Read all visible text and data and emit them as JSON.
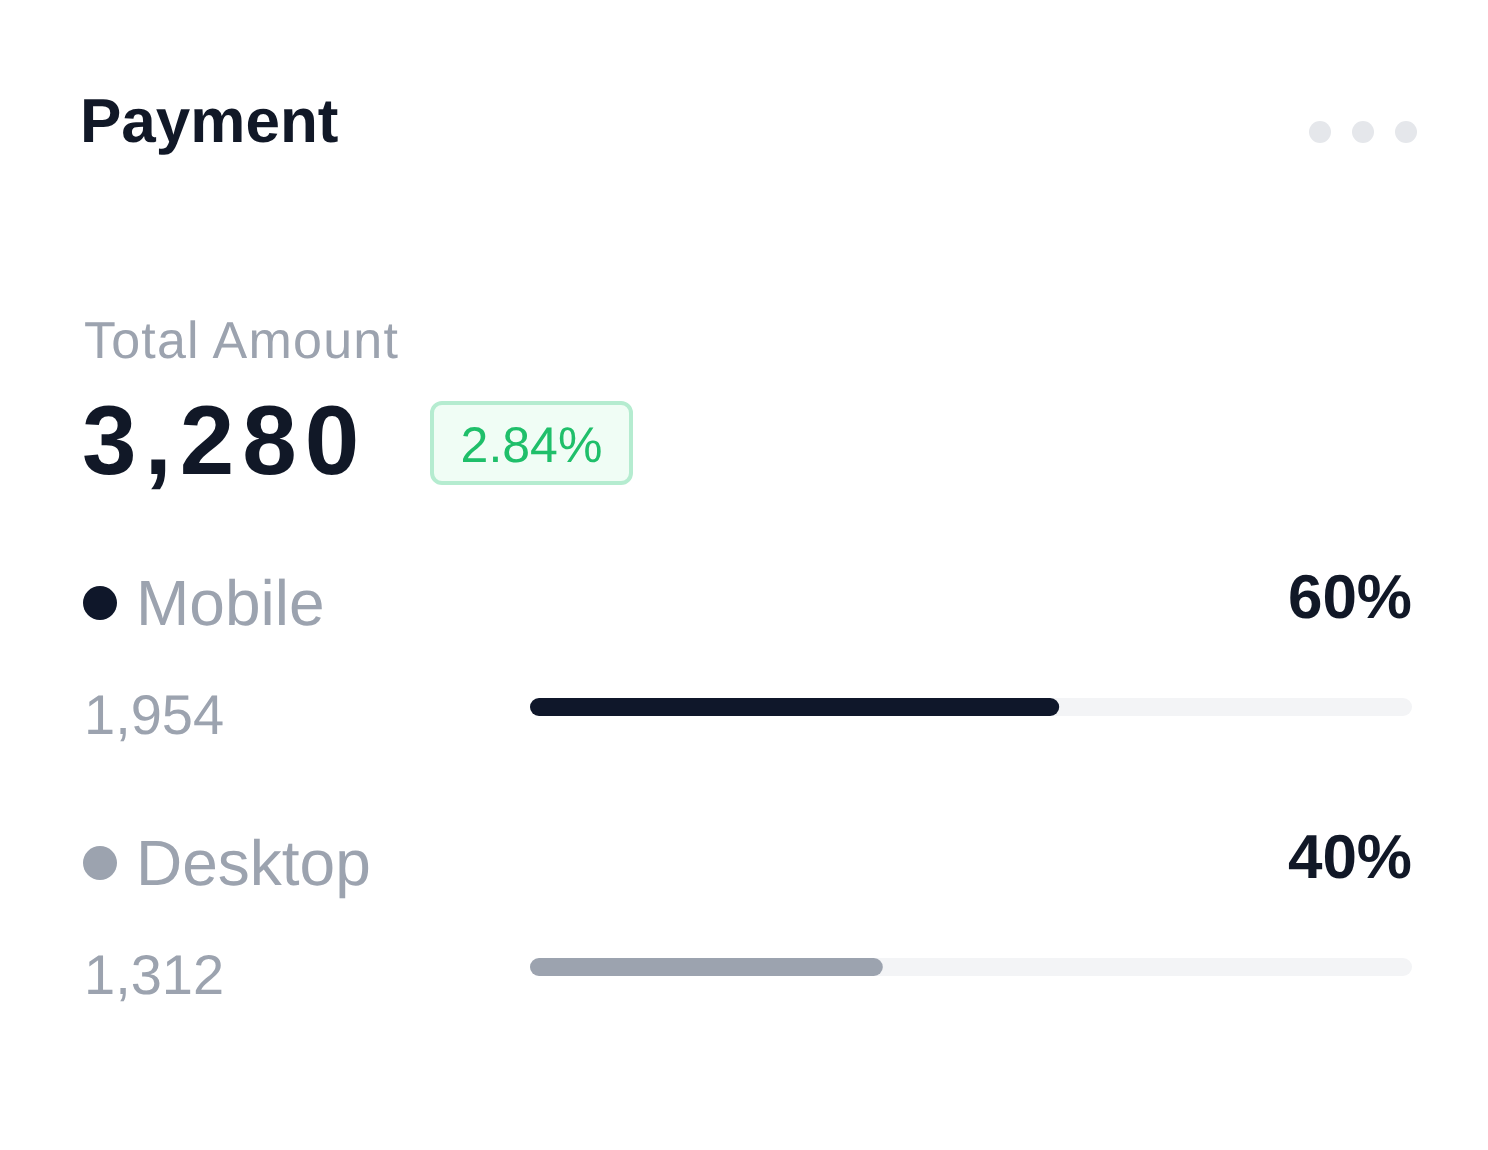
{
  "chart_data": {
    "type": "bar",
    "orientation": "horizontal",
    "title": "Payment",
    "categories": [
      "Mobile",
      "Desktop"
    ],
    "values": [
      60,
      40
    ],
    "colors": [
      "#0f172a",
      "#9ca3af"
    ],
    "xlim": [
      0,
      100
    ],
    "value_labels": [
      "60%",
      "40%"
    ],
    "tick_labels": "y",
    "annotations": [
      "Total Amount",
      "3,280",
      "2.84%",
      "1,954",
      "1,312"
    ]
  }
}
